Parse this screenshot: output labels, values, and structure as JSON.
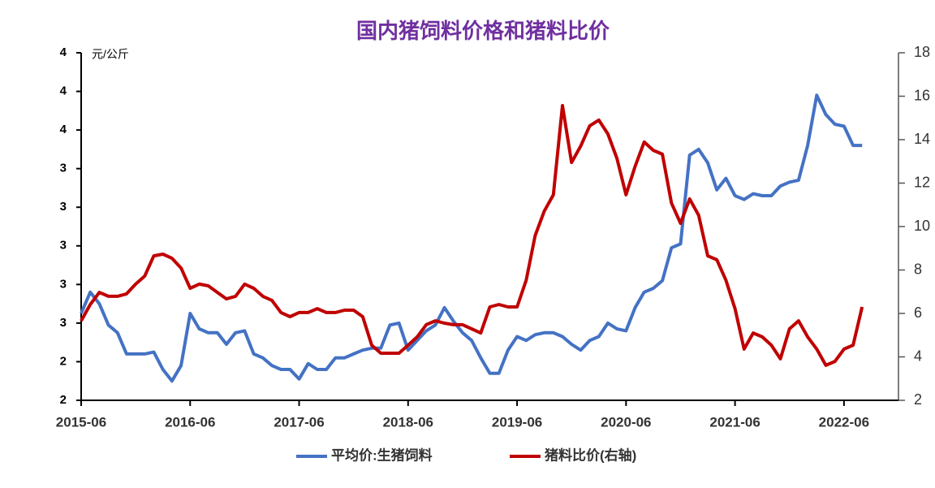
{
  "chart_data": {
    "type": "line",
    "title": "国内猪饲料价格和猪料比价",
    "y_label": "元/公斤",
    "x": [
      "2015-06",
      "2015-07",
      "2015-08",
      "2015-09",
      "2015-10",
      "2015-11",
      "2015-12",
      "2016-01",
      "2016-02",
      "2016-03",
      "2016-04",
      "2016-05",
      "2016-06",
      "2016-07",
      "2016-08",
      "2016-09",
      "2016-10",
      "2016-11",
      "2016-12",
      "2017-01",
      "2017-02",
      "2017-03",
      "2017-04",
      "2017-05",
      "2017-06",
      "2017-07",
      "2017-08",
      "2017-09",
      "2017-10",
      "2017-11",
      "2017-12",
      "2018-01",
      "2018-02",
      "2018-03",
      "2018-04",
      "2018-05",
      "2018-06",
      "2018-07",
      "2018-08",
      "2018-09",
      "2018-10",
      "2018-11",
      "2018-12",
      "2019-01",
      "2019-02",
      "2019-03",
      "2019-04",
      "2019-05",
      "2019-06",
      "2019-07",
      "2019-08",
      "2019-09",
      "2019-10",
      "2019-11",
      "2019-12",
      "2020-01",
      "2020-02",
      "2020-03",
      "2020-04",
      "2020-05",
      "2020-06",
      "2020-07",
      "2020-08",
      "2020-09",
      "2020-10",
      "2020-11",
      "2020-12",
      "2021-01",
      "2021-02",
      "2021-03",
      "2021-04",
      "2021-05",
      "2021-06",
      "2021-07",
      "2021-08",
      "2021-09",
      "2021-10",
      "2021-11",
      "2021-12",
      "2022-01",
      "2022-02",
      "2022-03",
      "2022-04",
      "2022-05",
      "2022-06",
      "2022-07",
      "2022-08"
    ],
    "xlim": [
      "2015-06",
      "2022-12"
    ],
    "xticks": [
      "2015-06",
      "2016-06",
      "2017-06",
      "2018-06",
      "2019-06",
      "2020-06",
      "2021-06",
      "2022-06"
    ],
    "ylim": [
      2.1,
      3.9
    ],
    "yticks": [
      {
        "value": 2.1,
        "label": "2"
      },
      {
        "value": 2.3,
        "label": "2"
      },
      {
        "value": 2.5,
        "label": "3"
      },
      {
        "value": 2.7,
        "label": "3"
      },
      {
        "value": 2.9,
        "label": "3"
      },
      {
        "value": 3.1,
        "label": "3"
      },
      {
        "value": 3.3,
        "label": "3"
      },
      {
        "value": 3.5,
        "label": "4"
      },
      {
        "value": 3.7,
        "label": "4"
      },
      {
        "value": 3.9,
        "label": "4"
      }
    ],
    "y2lim": [
      2,
      18
    ],
    "y2ticks": [
      2,
      4,
      6,
      8,
      10,
      12,
      14,
      16,
      18
    ],
    "series": [
      {
        "name": "平均价:生猪饲料",
        "color": "#4472c4",
        "values": [
          2.55,
          2.66,
          2.6,
          2.49,
          2.45,
          2.34,
          2.34,
          2.34,
          2.35,
          2.26,
          2.2,
          2.28,
          2.55,
          2.47,
          2.45,
          2.45,
          2.39,
          2.45,
          2.46,
          2.34,
          2.32,
          2.28,
          2.26,
          2.26,
          2.21,
          2.29,
          2.26,
          2.26,
          2.32,
          2.32,
          2.34,
          2.36,
          2.37,
          2.37,
          2.49,
          2.5,
          2.36,
          2.41,
          2.46,
          2.49,
          2.58,
          2.51,
          2.45,
          2.41,
          2.32,
          2.24,
          2.24,
          2.36,
          2.43,
          2.41,
          2.44,
          2.45,
          2.45,
          2.43,
          2.39,
          2.36,
          2.41,
          2.43,
          2.5,
          2.47,
          2.46,
          2.58,
          2.66,
          2.68,
          2.72,
          2.89,
          2.91,
          3.37,
          3.4,
          3.33,
          3.19,
          3.25,
          3.16,
          3.14,
          3.17,
          3.16,
          3.16,
          3.21,
          3.23,
          3.24,
          3.42,
          3.68,
          3.58,
          3.53,
          3.52,
          3.42,
          3.42
        ]
      },
      {
        "name": "猪料比价(右轴)",
        "color": "#c00000",
        "axis": "y2",
        "values": [
          5.66,
          6.41,
          6.97,
          6.79,
          6.79,
          6.9,
          7.35,
          7.72,
          8.65,
          8.73,
          8.54,
          8.09,
          7.16,
          7.35,
          7.27,
          6.97,
          6.67,
          6.79,
          7.35,
          7.16,
          6.79,
          6.6,
          6.04,
          5.85,
          6.04,
          6.04,
          6.22,
          6.04,
          6.04,
          6.15,
          6.15,
          5.85,
          4.54,
          4.17,
          4.17,
          4.17,
          4.54,
          4.92,
          5.48,
          5.66,
          5.55,
          5.48,
          5.48,
          5.29,
          5.1,
          6.3,
          6.41,
          6.3,
          6.3,
          7.53,
          9.59,
          10.71,
          11.46,
          15.57,
          12.95,
          13.7,
          14.64,
          14.9,
          14.26,
          13.14,
          11.46,
          12.77,
          13.89,
          13.51,
          13.33,
          11.08,
          10.15,
          11.27,
          10.52,
          8.65,
          8.47,
          7.53,
          6.22,
          4.36,
          5.1,
          4.92,
          4.54,
          3.91,
          5.29,
          5.66,
          4.92,
          4.36,
          3.61,
          3.79,
          4.36,
          4.54,
          6.3
        ]
      }
    ]
  }
}
